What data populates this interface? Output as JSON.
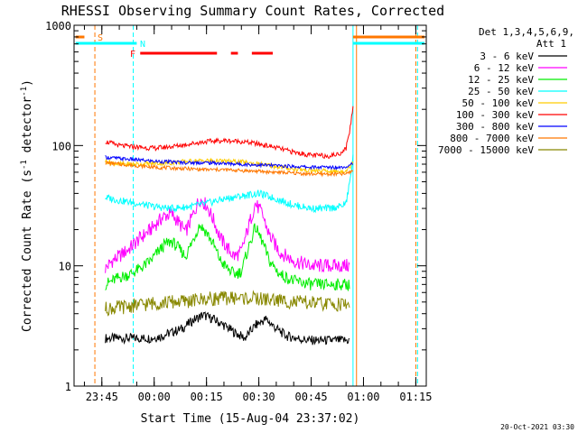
{
  "chart_data": {
    "type": "line",
    "title": "RHESSI Observing Summary Count Rates, Corrected",
    "xlabel": "Start Time (15-Aug-04 23:37:02)",
    "ylabel": "Corrected Count Rate (s^-1 detector^-1)",
    "ylabel_parts": {
      "main": "Corrected Count Rate (s",
      "exp1": "-1",
      "mid": " detector",
      "exp2": "-1",
      "end": ")"
    },
    "footer": "20-Oct-2021 03:30",
    "y_scale": "log",
    "ylim": [
      1,
      1000
    ],
    "xlim": [
      "23:37:02",
      "01:18:00"
    ],
    "yticks": [
      {
        "value": 1,
        "label": "1"
      },
      {
        "value": 10,
        "label": "10"
      },
      {
        "value": 100,
        "label": "100"
      },
      {
        "value": 1000,
        "label": "1000"
      }
    ],
    "xticks": [
      "23:45",
      "00:00",
      "00:15",
      "00:30",
      "00:45",
      "01:00",
      "01:15"
    ],
    "legend": {
      "placement": "top-right",
      "header": [
        "Det 1,3,4,5,6,9,",
        "Att 1"
      ]
    },
    "series": [
      {
        "name": "3 - 6 keV",
        "color": "#000000",
        "t": [
          "23:46",
          "23:49",
          "23:52",
          "23:56",
          "23:59",
          "00:02",
          "00:05",
          "00:08",
          "00:11",
          "00:14",
          "00:17",
          "00:20",
          "00:23",
          "00:26",
          "00:29",
          "00:32",
          "00:35",
          "00:38",
          "00:41",
          "00:44",
          "00:47",
          "00:50",
          "00:53",
          "00:56"
        ],
        "v": [
          2.5,
          2.5,
          2.5,
          2.5,
          2.5,
          2.6,
          2.8,
          3.0,
          3.5,
          3.9,
          3.6,
          3.2,
          2.8,
          2.5,
          3.2,
          3.6,
          3.0,
          2.6,
          2.5,
          2.4,
          2.4,
          2.4,
          2.4,
          2.4
        ]
      },
      {
        "name": "6 - 12 keV",
        "color": "#ff00ff",
        "t": [
          "23:46",
          "23:48",
          "23:50",
          "23:53",
          "23:56",
          "23:59",
          "00:01",
          "00:03",
          "00:05",
          "00:07",
          "00:09",
          "00:11",
          "00:13",
          "00:15",
          "00:17",
          "00:19",
          "00:21",
          "00:23",
          "00:25",
          "00:27",
          "00:29",
          "00:31",
          "00:33",
          "00:36",
          "00:40",
          "00:45",
          "00:50",
          "00:53",
          "00:56"
        ],
        "v": [
          9.5,
          11,
          12,
          14,
          17,
          20,
          23,
          26,
          27,
          23,
          19,
          26,
          36,
          32,
          24,
          17,
          14,
          12,
          13,
          21,
          33,
          27,
          18,
          13,
          11,
          10,
          10,
          10,
          10
        ]
      },
      {
        "name": "12 - 25 keV",
        "color": "#00ee00",
        "t": [
          "23:46",
          "23:48",
          "23:50",
          "23:53",
          "23:56",
          "23:59",
          "00:01",
          "00:03",
          "00:05",
          "00:07",
          "00:09",
          "00:11",
          "00:13",
          "00:15",
          "00:17",
          "00:19",
          "00:21",
          "00:23",
          "00:25",
          "00:27",
          "00:29",
          "00:31",
          "00:33",
          "00:36",
          "00:40",
          "00:45",
          "00:50",
          "00:53",
          "00:56"
        ],
        "v": [
          7,
          7.5,
          8,
          8.5,
          9.5,
          11,
          13,
          15,
          16,
          14,
          12,
          16,
          22,
          19,
          15,
          11,
          9.5,
          8.5,
          9,
          14,
          21,
          16,
          11,
          8.5,
          7.5,
          7,
          7,
          7,
          7
        ]
      },
      {
        "name": "25 - 50 keV",
        "color": "#00ffff",
        "t": [
          "23:46",
          "23:50",
          "23:55",
          "00:00",
          "00:05",
          "00:10",
          "00:15",
          "00:20",
          "00:25",
          "00:30",
          "00:35",
          "00:40",
          "00:45",
          "00:50",
          "00:53",
          "00:55",
          "00:56",
          "00:57"
        ],
        "v": [
          37,
          35,
          33,
          31,
          30,
          31,
          33,
          36,
          38,
          40,
          36,
          32,
          30,
          30,
          31,
          33,
          48,
          80
        ]
      },
      {
        "name": "50 - 100 keV",
        "color": "#ffcc00",
        "t": [
          "23:46",
          "23:50",
          "23:55",
          "00:00",
          "00:05",
          "00:10",
          "00:15",
          "00:20",
          "00:25",
          "00:30",
          "00:35",
          "00:40",
          "00:45",
          "00:50",
          "00:53",
          "00:55",
          "00:56",
          "00:57"
        ],
        "v": [
          74,
          70,
          70,
          71,
          72,
          74,
          75,
          74,
          73,
          70,
          67,
          64,
          62,
          61,
          61,
          62,
          66,
          74
        ]
      },
      {
        "name": "100 - 300 keV",
        "color": "#ff0000",
        "t": [
          "23:46",
          "23:50",
          "23:55",
          "00:00",
          "00:05",
          "00:10",
          "00:15",
          "00:20",
          "00:25",
          "00:30",
          "00:35",
          "00:40",
          "00:45",
          "00:50",
          "00:53",
          "00:55",
          "00:56",
          "00:57"
        ],
        "v": [
          108,
          100,
          97,
          95,
          98,
          103,
          108,
          110,
          108,
          103,
          96,
          88,
          83,
          82,
          85,
          95,
          130,
          210
        ]
      },
      {
        "name": "300 - 800 keV",
        "color": "#0000ff",
        "t": [
          "23:46",
          "23:50",
          "23:55",
          "00:00",
          "00:05",
          "00:10",
          "00:15",
          "00:20",
          "00:25",
          "00:30",
          "00:35",
          "00:40",
          "00:45",
          "00:50",
          "00:53",
          "00:55",
          "00:56",
          "00:57"
        ],
        "v": [
          80,
          78,
          76,
          74,
          73,
          72,
          72,
          71,
          70,
          69,
          68,
          67,
          66,
          66,
          66,
          67,
          69,
          72
        ]
      },
      {
        "name": "800 - 7000 keV",
        "color": "#ff7700",
        "t": [
          "23:46",
          "23:50",
          "23:55",
          "00:00",
          "00:05",
          "00:10",
          "00:15",
          "00:20",
          "00:25",
          "00:30",
          "00:35",
          "00:40",
          "00:45",
          "00:50",
          "00:53",
          "00:55",
          "00:56",
          "00:57"
        ],
        "v": [
          72,
          70,
          68,
          66,
          65,
          64,
          63,
          63,
          62,
          61,
          60,
          59,
          58,
          58,
          58,
          58,
          60,
          62
        ]
      },
      {
        "name": "7000 - 15000 keV",
        "color": "#888800",
        "t": [
          "23:46",
          "23:50",
          "23:55",
          "00:00",
          "00:05",
          "00:10",
          "00:15",
          "00:20",
          "00:25",
          "00:30",
          "00:35",
          "00:40",
          "00:45",
          "00:50",
          "00:53",
          "00:55",
          "00:56"
        ],
        "v": [
          4.4,
          4.5,
          4.7,
          4.9,
          5.0,
          5.1,
          5.3,
          5.4,
          5.4,
          5.3,
          5.2,
          5.0,
          4.9,
          4.8,
          4.8,
          4.8,
          4.8
        ]
      }
    ],
    "flags": [
      {
        "label": "S",
        "color": "#ff7700",
        "segments": [
          [
            "23:37:30",
            "23:40:00"
          ],
          [
            "00:57:00",
            "01:17:30"
          ]
        ]
      },
      {
        "label": "N",
        "color": "#00ffff",
        "segments": [
          [
            "23:37:30",
            "23:55:00"
          ],
          [
            "00:57:00",
            "01:17:30"
          ]
        ]
      },
      {
        "label": "F",
        "color": "#ff0000",
        "segments": [
          [
            "23:56:00",
            "00:18:00"
          ],
          [
            "00:22:00",
            "00:24:00"
          ],
          [
            "00:28:00",
            "00:34:00"
          ]
        ]
      }
    ],
    "vlines": [
      {
        "t": "23:43:00",
        "color": "#ff7700",
        "style": "dashed"
      },
      {
        "t": "23:54:00",
        "color": "#00ffff",
        "style": "dashed"
      },
      {
        "t": "00:57:00",
        "color": "#00ffff",
        "style": "solid"
      },
      {
        "t": "00:58:00",
        "color": "#ff7700",
        "style": "solid"
      },
      {
        "t": "01:15:00",
        "color": "#ff7700",
        "style": "dashed"
      },
      {
        "t": "01:15:30",
        "color": "#00ffff",
        "style": "dashed"
      }
    ]
  }
}
